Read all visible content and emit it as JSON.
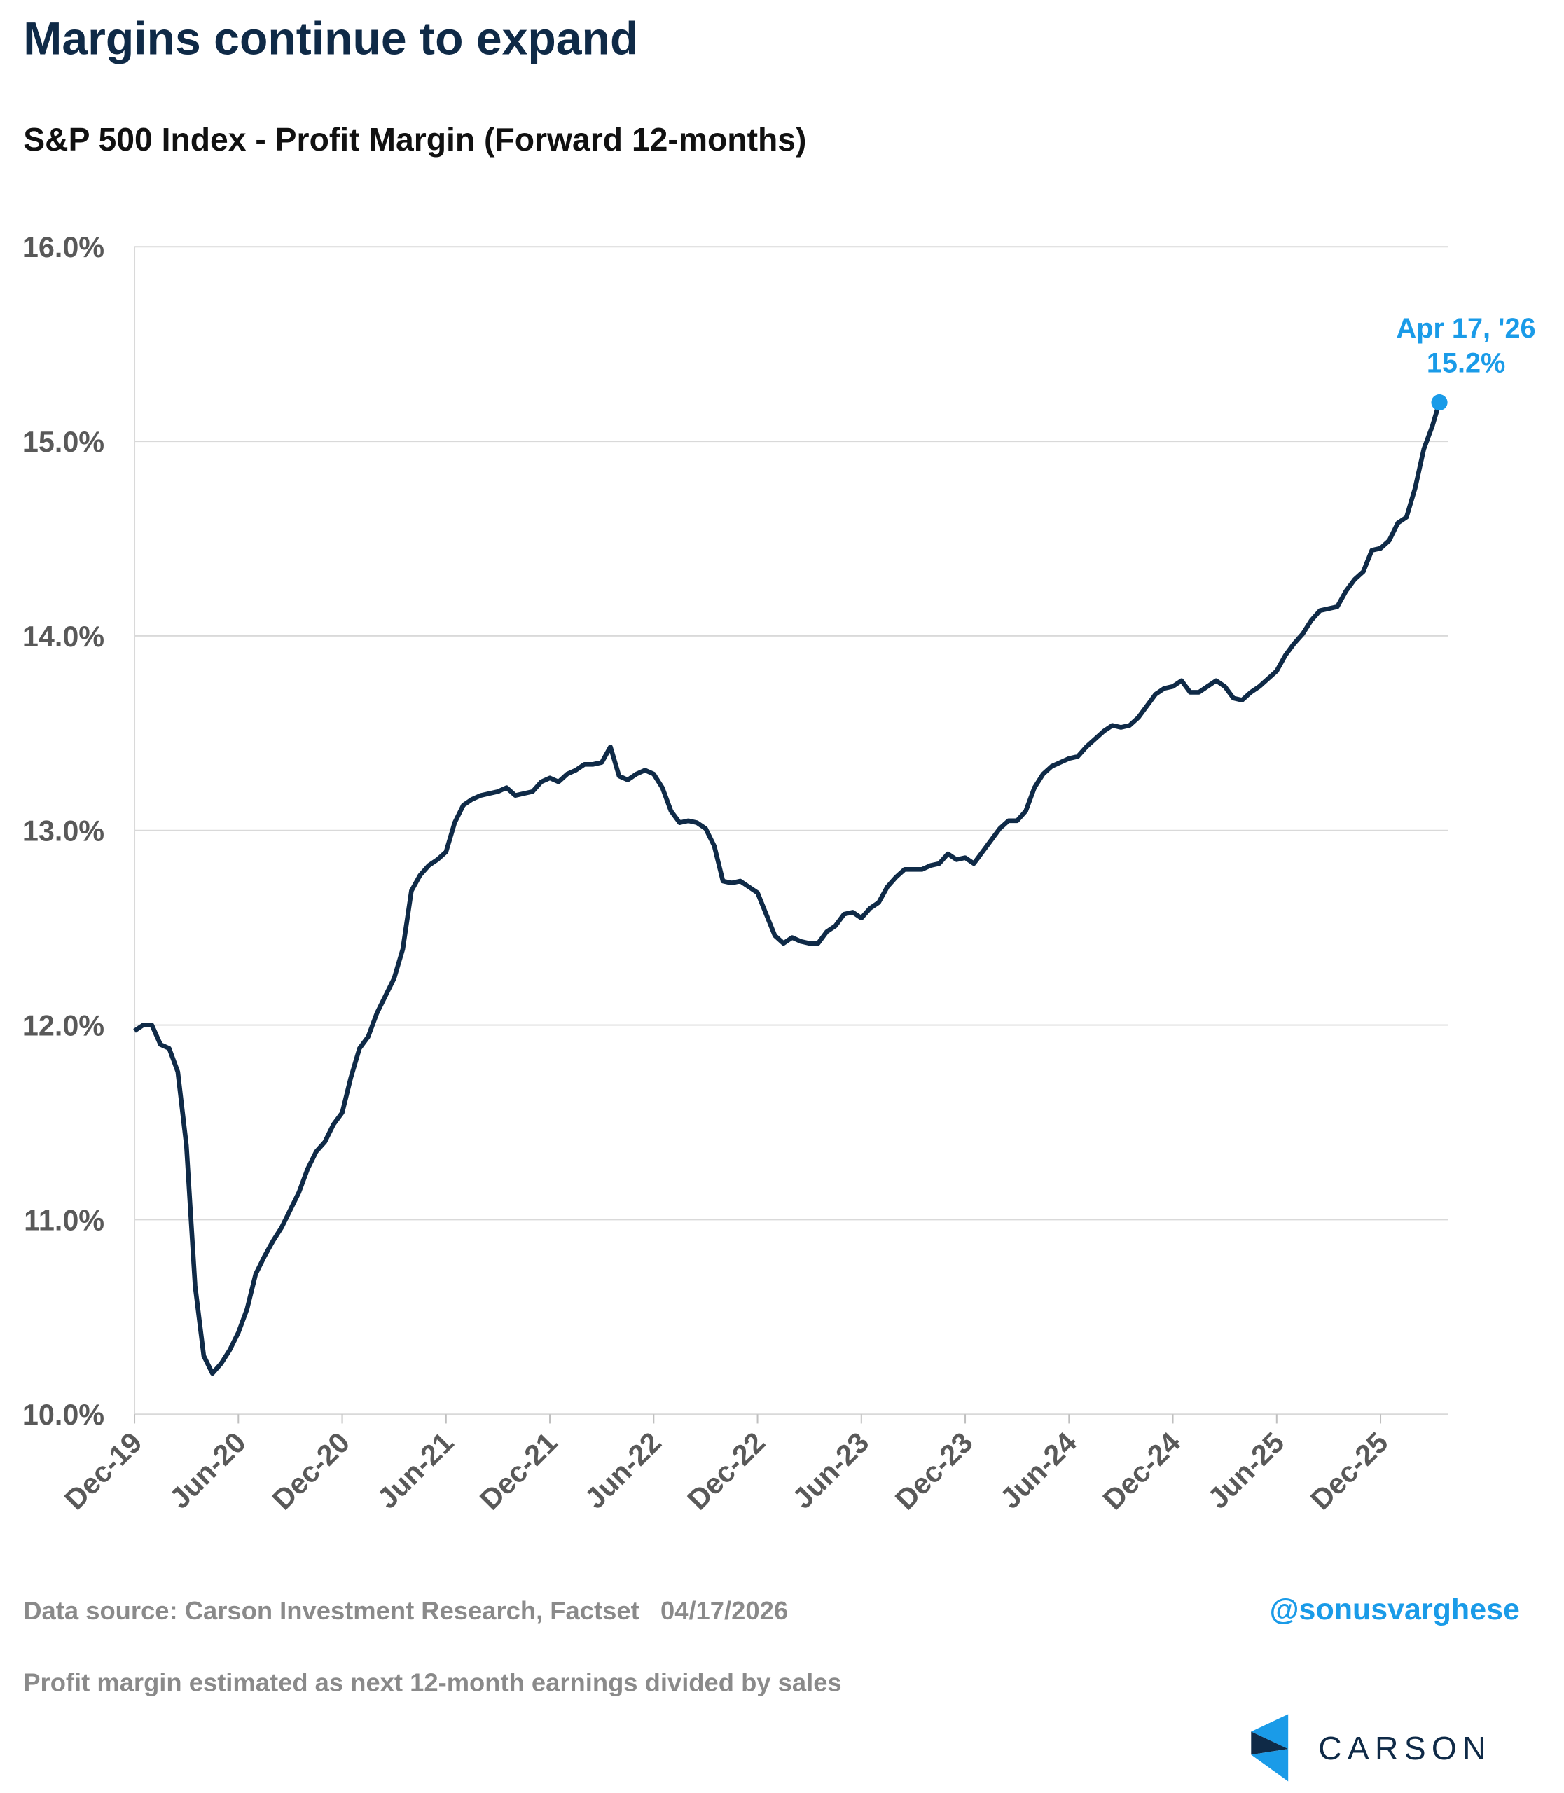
{
  "chart_data": {
    "type": "line",
    "title": "Margins continue to expand",
    "subtitle": "S&P 500 Index - Profit Margin (Forward 12-months)",
    "color": "#0f2a47",
    "x": [
      0,
      0.5,
      1,
      1.5,
      2,
      2.5,
      3,
      3.5,
      4,
      4.5,
      5,
      5.5,
      6,
      6.5,
      7,
      7.5,
      8,
      8.5,
      9,
      9.5,
      10,
      10.5,
      11,
      11.5,
      12,
      12.5,
      13,
      13.5,
      14,
      14.5,
      15,
      15.5,
      16,
      16.5,
      17,
      17.5,
      18,
      18.5,
      19,
      19.5,
      20,
      20.5,
      21,
      21.5,
      22,
      22.5,
      23,
      23.5,
      24,
      24.5,
      25,
      25.5,
      26,
      26.5,
      27,
      27.5,
      28,
      28.5,
      29,
      29.5,
      30,
      30.5,
      31,
      31.5,
      32,
      32.5,
      33,
      33.5,
      34,
      34.5,
      35,
      35.5,
      36,
      36.5,
      37,
      37.5,
      38,
      38.5,
      39,
      39.5,
      40,
      40.5,
      41,
      41.5,
      42,
      42.5,
      43,
      43.5,
      44,
      44.5,
      45,
      45.5,
      46,
      46.5,
      47,
      47.5,
      48,
      48.5,
      49,
      49.5,
      50,
      50.5,
      51,
      51.5,
      52,
      52.5,
      53,
      53.5,
      54,
      54.5,
      55,
      55.5,
      56,
      56.5,
      57,
      57.5,
      58,
      58.5,
      59,
      59.5,
      60,
      60.5,
      61,
      61.5,
      62,
      62.5,
      63,
      63.5,
      64,
      64.5,
      65,
      65.5,
      66,
      66.5,
      67,
      67.5,
      68,
      68.5,
      69,
      69.5,
      70,
      70.5,
      71,
      71.5,
      72,
      72.5,
      73,
      73.5,
      74,
      74.5,
      75,
      75.4
    ],
    "values": [
      11.97,
      12.0,
      12.0,
      11.9,
      11.88,
      11.76,
      11.38,
      10.66,
      10.3,
      10.21,
      10.26,
      10.33,
      10.42,
      10.54,
      10.72,
      10.81,
      10.89,
      10.96,
      11.05,
      11.14,
      11.26,
      11.35,
      11.4,
      11.49,
      11.55,
      11.73,
      11.88,
      11.94,
      12.06,
      12.15,
      12.24,
      12.39,
      12.69,
      12.77,
      12.82,
      12.85,
      12.89,
      13.04,
      13.13,
      13.16,
      13.18,
      13.19,
      13.2,
      13.22,
      13.18,
      13.19,
      13.2,
      13.25,
      13.27,
      13.25,
      13.29,
      13.31,
      13.34,
      13.34,
      13.35,
      13.43,
      13.28,
      13.26,
      13.29,
      13.31,
      13.29,
      13.22,
      13.1,
      13.04,
      13.05,
      13.04,
      13.01,
      12.92,
      12.74,
      12.73,
      12.74,
      12.71,
      12.68,
      12.57,
      12.46,
      12.42,
      12.45,
      12.43,
      12.42,
      12.42,
      12.48,
      12.51,
      12.57,
      12.58,
      12.55,
      12.6,
      12.63,
      12.71,
      12.76,
      12.8,
      12.8,
      12.8,
      12.82,
      12.83,
      12.88,
      12.85,
      12.86,
      12.83,
      12.89,
      12.95,
      13.01,
      13.05,
      13.05,
      13.1,
      13.22,
      13.29,
      13.33,
      13.35,
      13.37,
      13.38,
      13.43,
      13.47,
      13.51,
      13.54,
      13.53,
      13.54,
      13.58,
      13.64,
      13.7,
      13.73,
      13.74,
      13.77,
      13.71,
      13.71,
      13.74,
      13.77,
      13.74,
      13.68,
      13.67,
      13.71,
      13.74,
      13.78,
      13.82,
      13.9,
      13.96,
      14.01,
      14.08,
      14.13,
      14.14,
      14.15,
      14.23,
      14.29,
      14.33,
      14.44,
      14.45,
      14.49,
      14.58,
      14.61,
      14.76,
      14.96,
      15.08,
      15.2
    ],
    "xlim": [
      0,
      75.9
    ],
    "xticks": [
      {
        "value": 0,
        "label": "Dec-19"
      },
      {
        "value": 6,
        "label": "Jun-20"
      },
      {
        "value": 12,
        "label": "Dec-20"
      },
      {
        "value": 18,
        "label": "Jun-21"
      },
      {
        "value": 24,
        "label": "Dec-21"
      },
      {
        "value": 30,
        "label": "Jun-22"
      },
      {
        "value": 36,
        "label": "Dec-22"
      },
      {
        "value": 42,
        "label": "Jun-23"
      },
      {
        "value": 48,
        "label": "Dec-23"
      },
      {
        "value": 54,
        "label": "Jun-24"
      },
      {
        "value": 60,
        "label": "Dec-24"
      },
      {
        "value": 66,
        "label": "Jun-25"
      },
      {
        "value": 72,
        "label": "Dec-25"
      }
    ],
    "ylim": [
      10,
      16
    ],
    "yticks": [
      {
        "value": 10,
        "label": "10.0%"
      },
      {
        "value": 11,
        "label": "11.0%"
      },
      {
        "value": 12,
        "label": "12.0%"
      },
      {
        "value": 13,
        "label": "13.0%"
      },
      {
        "value": 14,
        "label": "14.0%"
      },
      {
        "value": 15,
        "label": "15.0%"
      },
      {
        "value": 16,
        "label": "16.0%"
      }
    ],
    "grid": true,
    "annotation": {
      "label": "Apr 17, '26",
      "x": 75.4,
      "value": 15.2,
      "value_label": "15.2%",
      "color": "#1a9be8"
    },
    "source": "Data source: Carson Investment Research, Factset   04/17/2026",
    "handle": "@sonusvarghese",
    "note": "Profit margin estimated as next 12-month earnings divided by sales",
    "logo": "CARSON"
  }
}
